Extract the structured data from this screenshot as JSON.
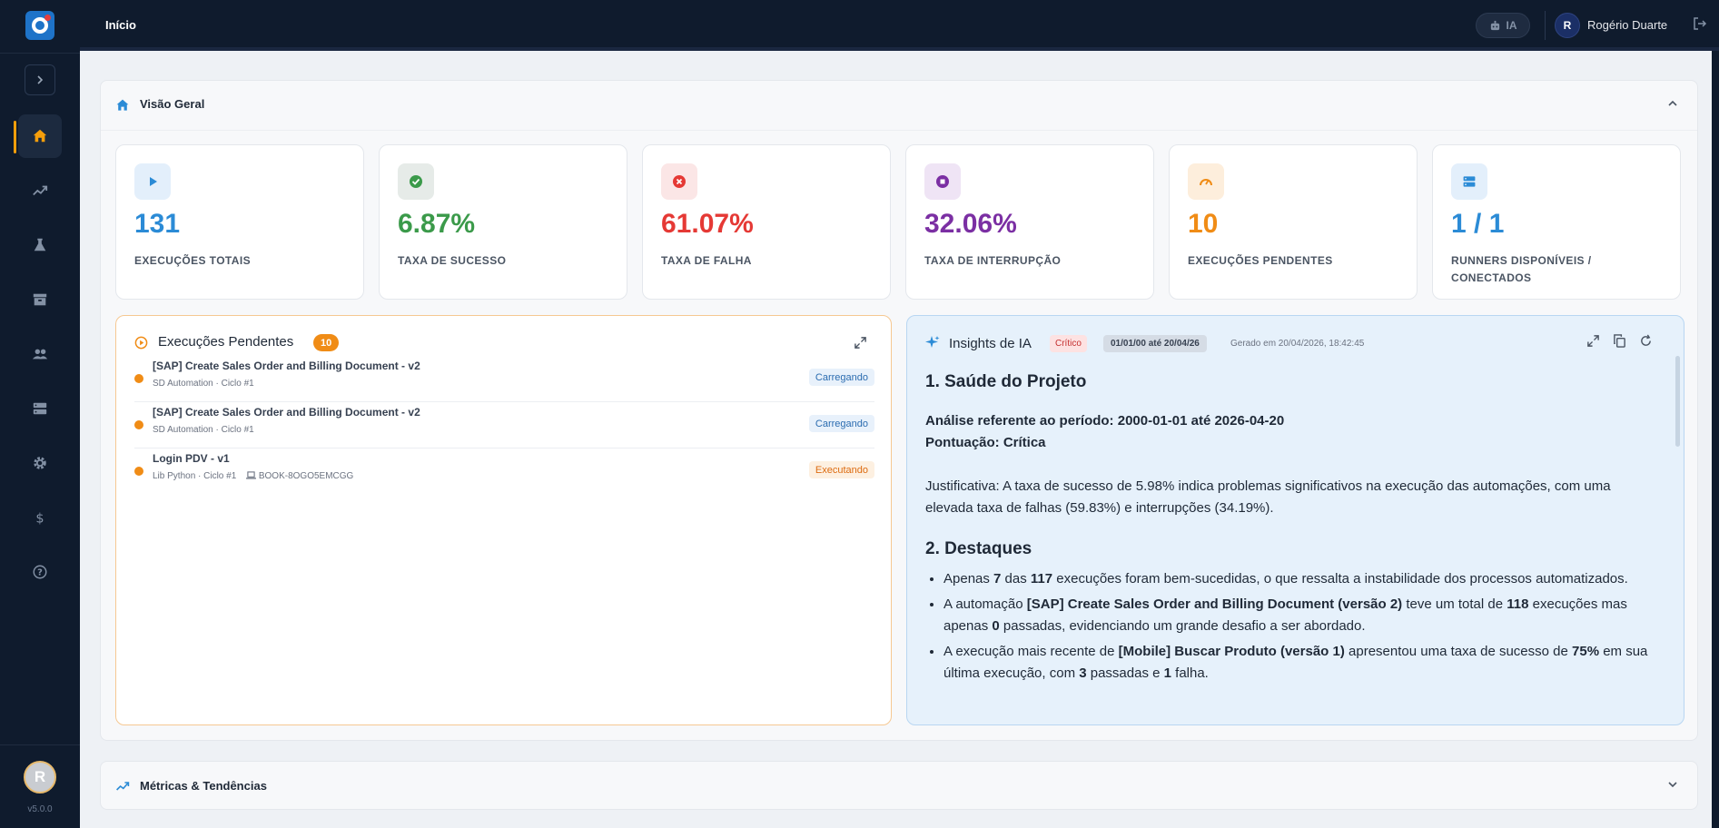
{
  "app": {
    "page_title": "Início",
    "version": "v5.0.0",
    "avatar_letter": "R",
    "ia_label": "IA",
    "user_name": "Rogério Duarte",
    "user_initial": "R"
  },
  "sidebar": {
    "items": [
      {
        "name": "home",
        "icon": "home-icon",
        "active": true
      },
      {
        "name": "trends",
        "icon": "trending-icon"
      },
      {
        "name": "tests",
        "icon": "flask-icon"
      },
      {
        "name": "archive",
        "icon": "archive-icon"
      },
      {
        "name": "users",
        "icon": "users-icon"
      },
      {
        "name": "servers",
        "icon": "server-icon"
      },
      {
        "name": "settings",
        "icon": "gear-icon"
      },
      {
        "name": "billing",
        "icon": "dollar-icon"
      },
      {
        "name": "help",
        "icon": "help-icon"
      }
    ]
  },
  "overview": {
    "title": "Visão Geral",
    "stats": [
      {
        "value": "131",
        "label": "EXECUÇÕES TOTAIS",
        "color": "#2b8bd6",
        "bg": "#e3effb",
        "icon": "play-icon"
      },
      {
        "value": "6.87%",
        "label": "TAXA DE SUCESSO",
        "color": "#3b9a4a",
        "bg": "#e6ebe8",
        "icon": "check-circle-icon"
      },
      {
        "value": "61.07%",
        "label": "TAXA DE FALHA",
        "color": "#e53935",
        "bg": "#fbe6e6",
        "icon": "x-circle-icon"
      },
      {
        "value": "32.06%",
        "label": "TAXA DE INTERRUPÇÃO",
        "color": "#7b2fa3",
        "bg": "#efe4f5",
        "icon": "stop-circle-icon"
      },
      {
        "value": "10",
        "label": "EXECUÇÕES PENDENTES",
        "color": "#f08c16",
        "bg": "#fdeedc",
        "icon": "gauge-icon"
      },
      {
        "value": "1 / 1",
        "label": "RUNNERS DISPONÍVEIS / CONECTADOS",
        "color": "#2b8bd6",
        "bg": "#e3effb",
        "icon": "server-icon"
      }
    ]
  },
  "pending": {
    "title": "Execuções Pendentes",
    "count": "10",
    "rows": [
      {
        "name": "[SAP] Create Sales Order and Billing Document - v2",
        "meta": "SD Automation · Ciclo #1",
        "machine": "",
        "status": "Carregando",
        "status_type": "loading"
      },
      {
        "name": "[SAP] Create Sales Order and Billing Document - v2",
        "meta": "SD Automation · Ciclo #1",
        "machine": "",
        "status": "Carregando",
        "status_type": "loading"
      },
      {
        "name": "Login PDV - v1",
        "meta": "Lib Python · Ciclo #1",
        "machine": "BOOK-8OGO5EMCGG",
        "status": "Executando",
        "status_type": "running"
      }
    ]
  },
  "ai": {
    "title": "Insights de IA",
    "severity": "Crítico",
    "period": "01/01/00 até 20/04/26",
    "generated": "Gerado em 20/04/2026, 18:42:45",
    "h1": "1. Saúde do Projeto",
    "period_line": "Análise referente ao período: 2000-01-01 até 2026-04-20",
    "score_line": "Pontuação: Crítica",
    "justification": "Justificativa: A taxa de sucesso de 5.98% indica problemas significativos na execução das automações, com uma elevada taxa de falhas (59.83%) e interrupções (34.19%).",
    "h2": "2. Destaques",
    "bullets": {
      "b1": {
        "t1": "Apenas ",
        "b1": "7",
        "t2": " das ",
        "b2": "117",
        "t3": " execuções foram bem-sucedidas, o que ressalta a instabilidade dos processos automatizados."
      },
      "b2": {
        "t1": "A automação ",
        "b1": "[SAP] Create Sales Order and Billing Document (versão 2)",
        "t2": " teve um total de ",
        "b2": "118",
        "t3": " execuções mas apenas ",
        "b3": "0",
        "t4": " passadas, evidenciando um grande desafio a ser abordado."
      },
      "b3": {
        "t1": "A execução mais recente de ",
        "b1": "[Mobile] Buscar Produto (versão 1)",
        "t2": " apresentou uma taxa de sucesso de ",
        "b2": "75%",
        "t3": " em sua última execução, com ",
        "b3": "3",
        "t4": " passadas e ",
        "b4": "1",
        "t5": " falha."
      }
    }
  },
  "metrics": {
    "title": "Métricas & Tendências"
  }
}
